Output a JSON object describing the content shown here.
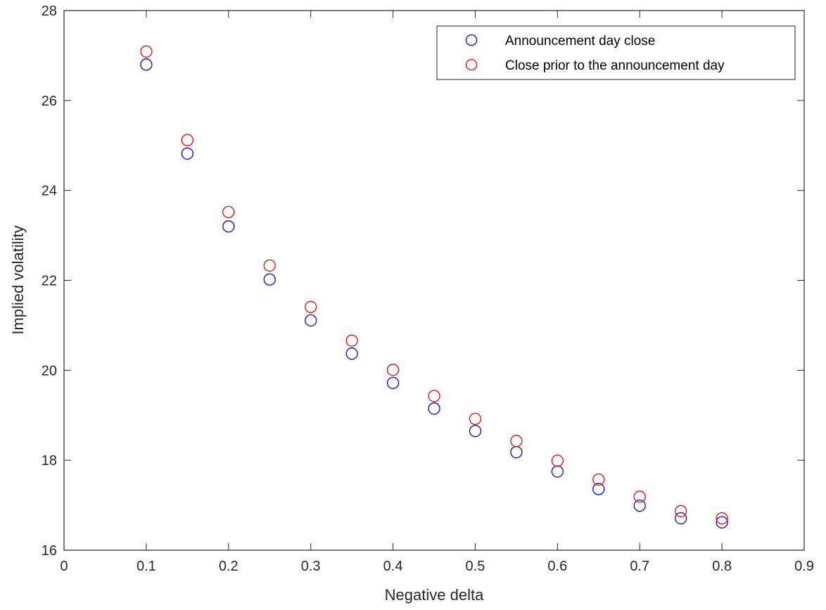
{
  "chart_data": {
    "type": "scatter",
    "title": "",
    "xlabel": "Negative delta",
    "ylabel": "Implied volatility",
    "xlim": [
      0,
      0.9
    ],
    "ylim": [
      16,
      28
    ],
    "xticks": [
      0,
      0.1,
      0.2,
      0.3,
      0.4,
      0.5,
      0.6,
      0.7,
      0.8,
      0.9
    ],
    "xtick_labels": [
      "0",
      "0.1",
      "0.2",
      "0.3",
      "0.4",
      "0.5",
      "0.6",
      "0.7",
      "0.8",
      "0.9"
    ],
    "yticks": [
      16,
      18,
      20,
      22,
      24,
      26,
      28
    ],
    "ytick_labels": [
      "16",
      "18",
      "20",
      "22",
      "24",
      "26",
      "28"
    ],
    "grid": false,
    "legend_position": "top-right",
    "marker": "open-circle",
    "x": [
      0.1,
      0.15,
      0.2,
      0.25,
      0.3,
      0.35,
      0.4,
      0.45,
      0.5,
      0.55,
      0.6,
      0.65,
      0.7,
      0.75,
      0.8
    ],
    "series": [
      {
        "name": "Announcement day close",
        "color": "#0000ff",
        "values": [
          26.8,
          24.82,
          23.2,
          22.02,
          21.11,
          20.37,
          19.72,
          19.15,
          18.65,
          18.18,
          17.75,
          17.36,
          16.99,
          16.71,
          16.62
        ]
      },
      {
        "name": "Close prior to the announcement day",
        "color": "#ff0000",
        "values": [
          27.09,
          25.12,
          23.52,
          22.33,
          21.41,
          20.66,
          20.01,
          19.43,
          18.92,
          18.43,
          17.99,
          17.57,
          17.19,
          16.87,
          16.71
        ]
      }
    ]
  }
}
